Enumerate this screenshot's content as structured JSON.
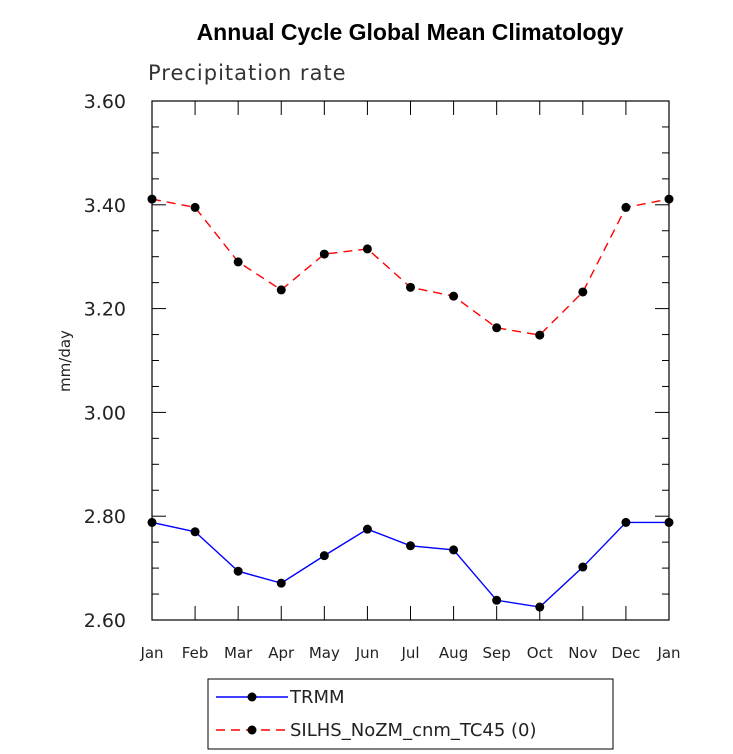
{
  "chart_data": {
    "type": "line",
    "title": "Annual Cycle Global Mean Climatology",
    "subtitle": "Precipitation rate",
    "xlabel": "",
    "ylabel": "mm/day",
    "categories": [
      "Jan",
      "Feb",
      "Mar",
      "Apr",
      "May",
      "Jun",
      "Jul",
      "Aug",
      "Sep",
      "Oct",
      "Nov",
      "Dec",
      "Jan"
    ],
    "ylim": [
      2.6,
      3.6
    ],
    "yticks": [
      "2.60",
      "2.80",
      "3.00",
      "3.20",
      "3.40",
      "3.60"
    ],
    "grid": false,
    "legend_position": "bottom",
    "series": [
      {
        "name": "TRMM",
        "color": "#0000ff",
        "line_style": "solid",
        "marker": "circle",
        "values": [
          2.788,
          2.77,
          2.694,
          2.671,
          2.724,
          2.775,
          2.743,
          2.735,
          2.638,
          2.625,
          2.702,
          2.788,
          2.788
        ]
      },
      {
        "name": "SILHS_NoZM_cnm_TC45 (0)",
        "color": "#ff0000",
        "line_style": "dashed",
        "marker": "circle",
        "values": [
          3.411,
          3.395,
          3.29,
          3.236,
          3.305,
          3.315,
          3.241,
          3.224,
          3.163,
          3.149,
          3.232,
          3.395,
          3.411
        ]
      }
    ]
  }
}
